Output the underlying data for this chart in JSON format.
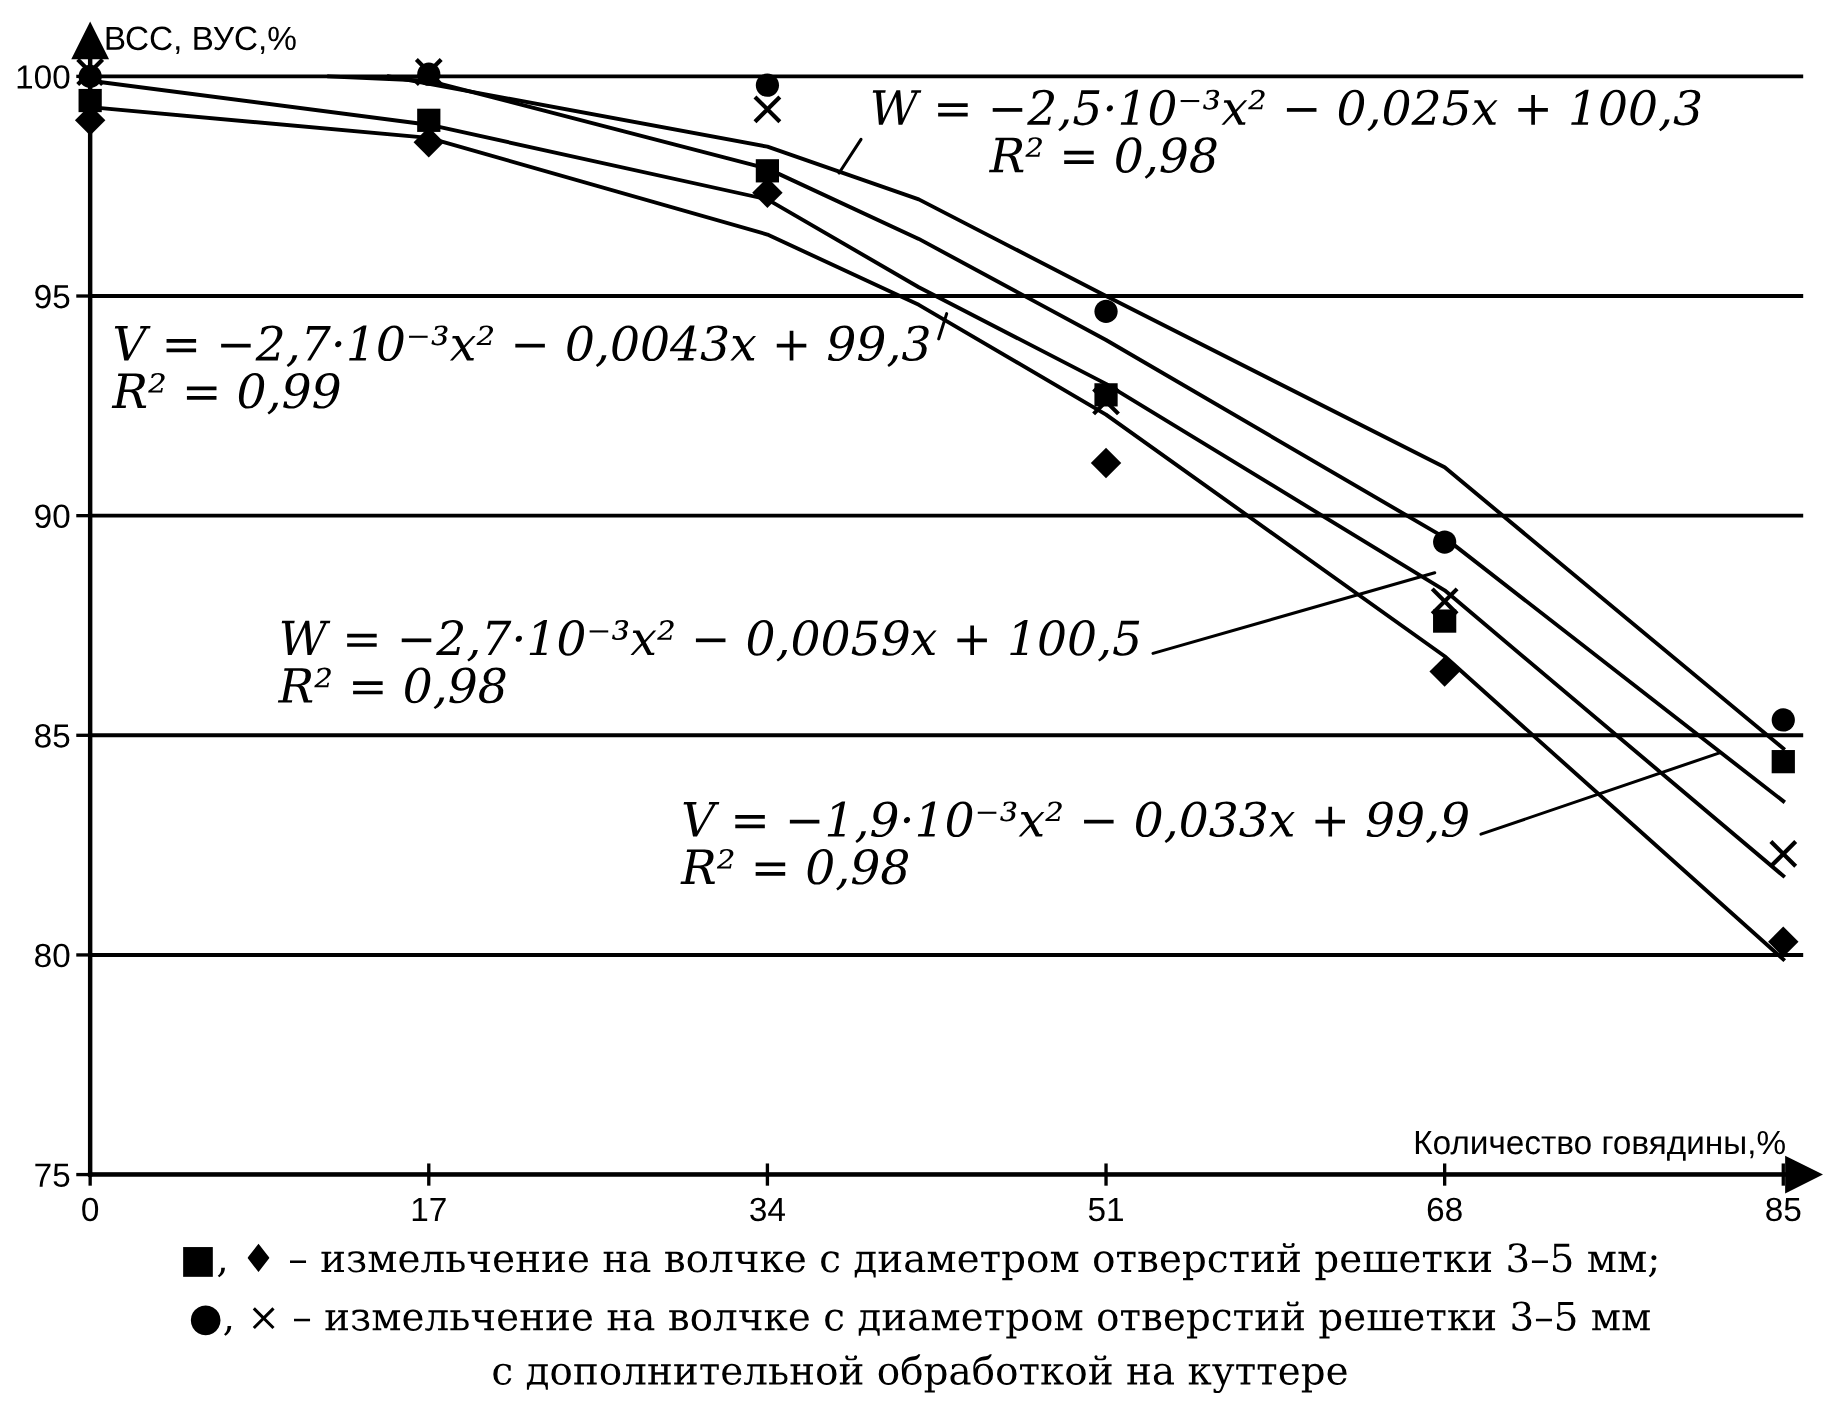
{
  "chart_data": {
    "type": "scatter",
    "xlabel": "Количество говядины,%",
    "ylabel": "ВСС, ВУС,%",
    "xlim": [
      0,
      86
    ],
    "ylim": [
      75,
      100.8
    ],
    "xticks": [
      0,
      17,
      34,
      51,
      68,
      85
    ],
    "yticks": [
      75,
      80,
      85,
      90,
      95,
      100
    ],
    "grid": "y",
    "legend": false,
    "series": [
      {
        "marker": "square",
        "color": "#000000",
        "x": [
          0,
          17,
          34,
          51,
          68,
          85
        ],
        "values": [
          99.45,
          99.0,
          97.85,
          92.75,
          87.6,
          84.4
        ]
      },
      {
        "marker": "diamond",
        "color": "#000000",
        "x": [
          0,
          17,
          34,
          51,
          68,
          85
        ],
        "values": [
          99.0,
          98.5,
          97.35,
          91.2,
          86.45,
          80.3
        ]
      },
      {
        "marker": "circle",
        "color": "#000000",
        "x": [
          0,
          17,
          34,
          51,
          68,
          85
        ],
        "values": [
          100.0,
          100.05,
          99.8,
          94.65,
          89.4,
          85.35
        ]
      },
      {
        "marker": "cross",
        "color": "#000000",
        "x": [
          0,
          17,
          34,
          51,
          68,
          85
        ],
        "values": [
          100.1,
          100.1,
          99.25,
          92.6,
          88.05,
          82.3
        ]
      },
      {
        "type": "line",
        "marker": "none",
        "color": "#000000",
        "x": [
          15,
          34,
          41.6,
          51,
          68,
          85
        ],
        "values": [
          100.0,
          98.4,
          97.2,
          95.0,
          91.1,
          84.7
        ]
      },
      {
        "type": "line",
        "marker": "none",
        "color": "#000000",
        "x": [
          12,
          17,
          34,
          41.6,
          51,
          68,
          85
        ],
        "values": [
          100.0,
          99.9,
          97.9,
          96.3,
          94.0,
          89.5,
          83.5
        ]
      },
      {
        "type": "line",
        "marker": "none",
        "color": "#000000",
        "x": [
          0,
          17,
          34,
          41.6,
          51,
          68,
          85
        ],
        "values": [
          99.9,
          98.9,
          97.2,
          95.2,
          93.0,
          88.3,
          81.8
        ]
      },
      {
        "type": "line",
        "marker": "none",
        "color": "#000000",
        "x": [
          0,
          17,
          34,
          41.6,
          51,
          68,
          85
        ],
        "values": [
          99.3,
          98.6,
          96.4,
          94.8,
          92.3,
          86.8,
          79.9
        ]
      }
    ],
    "annotations": [
      {
        "text": "W = −2,5·10⁻³x² − 0,025x + 100,3\n        R² = 0,98",
        "x": 37.6,
        "y": 97.8
      },
      {
        "text": "V = −2,7·10⁻³x² − 0,0043x + 99,3\nR² = 0,99",
        "x": 43,
        "y": 94.6
      },
      {
        "text": "W = −2,7·10⁻³x² − 0,0059x + 100,5\nR² = 0,98",
        "x": 67.5,
        "y": 88.7
      },
      {
        "text": "V = −1,9·10⁻³x² − 0,033x + 99,9\nR² = 0,98",
        "x": 81.8,
        "y": 84.6
      },
      "■, ♦ – измельчение на волчке с диаметром отверстий решетки 3–5 мм;",
      "●, × – измельчение на волчке с диаметром отверстий решетки 3–5 мм",
      "с дополнительной обработкой на куттере"
    ]
  }
}
